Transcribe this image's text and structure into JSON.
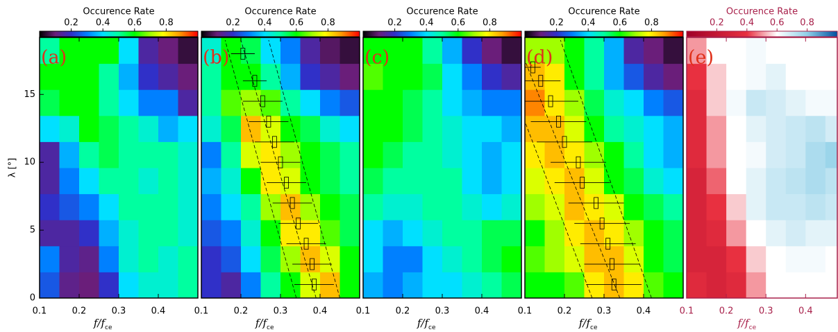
{
  "chart_data": [
    {
      "type": "heatmap",
      "panel_label": "(a)",
      "colormap": "rainbow",
      "axis_color": "#000000",
      "colorbar_title": "Occurence Rate",
      "colorbar_lim": [
        0,
        1
      ],
      "colorbar_ticks": [
        0.2,
        0.4,
        0.6,
        0.8
      ],
      "xlabel": "f/f",
      "xlabel_sub": "ce",
      "ylabel": "λ [°]",
      "xlim": [
        0.1,
        0.5
      ],
      "xticks": [
        0.1,
        0.2,
        0.3,
        0.4
      ],
      "ylim": [
        0,
        19.2
      ],
      "yticks": [
        0,
        5,
        10,
        15
      ],
      "xbins": [
        0.1,
        0.15,
        0.2,
        0.25,
        0.3,
        0.35,
        0.4,
        0.45,
        0.5
      ],
      "ybins": [
        0,
        1.92,
        3.84,
        5.76,
        7.68,
        9.6,
        11.52,
        13.44,
        15.36,
        17.28,
        19.2
      ],
      "z": [
        [
          0.25,
          0.12,
          0.1,
          0.2,
          0.4,
          0.45,
          0.45,
          0.5
        ],
        [
          0.3,
          0.15,
          0.12,
          0.3,
          0.45,
          0.5,
          0.45,
          0.5
        ],
        [
          0.15,
          0.15,
          0.2,
          0.35,
          0.45,
          0.5,
          0.5,
          0.45
        ],
        [
          0.2,
          0.25,
          0.3,
          0.4,
          0.5,
          0.5,
          0.5,
          0.45
        ],
        [
          0.15,
          0.3,
          0.4,
          0.5,
          0.5,
          0.45,
          0.5,
          0.45
        ],
        [
          0.15,
          0.35,
          0.5,
          0.55,
          0.5,
          0.5,
          0.5,
          0.45
        ],
        [
          0.4,
          0.45,
          0.6,
          0.55,
          0.5,
          0.45,
          0.35,
          0.4
        ],
        [
          0.55,
          0.6,
          0.6,
          0.5,
          0.4,
          0.3,
          0.3,
          0.15
        ],
        [
          0.6,
          0.6,
          0.6,
          0.5,
          0.35,
          0.2,
          0.15,
          0.1
        ],
        [
          0.5,
          0.6,
          0.6,
          0.6,
          0.4,
          0.15,
          0.1,
          0.05
        ]
      ]
    },
    {
      "type": "heatmap",
      "panel_label": "(b)",
      "colormap": "rainbow",
      "axis_color": "#000000",
      "colorbar_title": "Occurence Rate",
      "colorbar_lim": [
        0,
        1
      ],
      "colorbar_ticks": [
        0.2,
        0.4,
        0.6,
        0.8
      ],
      "xlabel": "f/f",
      "xlabel_sub": "ce",
      "xlim": [
        0.1,
        0.5
      ],
      "xticks": [
        0.1,
        0.2,
        0.3,
        0.4
      ],
      "ylim": [
        0,
        19.2
      ],
      "xbins": [
        0.1,
        0.15,
        0.2,
        0.25,
        0.3,
        0.35,
        0.4,
        0.45,
        0.5
      ],
      "ybins": [
        0,
        1.92,
        3.84,
        5.76,
        7.68,
        9.6,
        11.52,
        13.44,
        15.36,
        17.28,
        19.2
      ],
      "z": [
        [
          0.2,
          0.15,
          0.3,
          0.5,
          0.6,
          0.75,
          0.85,
          0.6
        ],
        [
          0.2,
          0.25,
          0.4,
          0.55,
          0.7,
          0.85,
          0.75,
          0.6
        ],
        [
          0.25,
          0.3,
          0.45,
          0.6,
          0.8,
          0.8,
          0.65,
          0.55
        ],
        [
          0.3,
          0.4,
          0.5,
          0.7,
          0.85,
          0.7,
          0.6,
          0.55
        ],
        [
          0.35,
          0.45,
          0.6,
          0.8,
          0.75,
          0.6,
          0.55,
          0.5
        ],
        [
          0.3,
          0.5,
          0.75,
          0.8,
          0.7,
          0.6,
          0.55,
          0.5
        ],
        [
          0.45,
          0.55,
          0.85,
          0.75,
          0.6,
          0.55,
          0.45,
          0.4
        ],
        [
          0.5,
          0.65,
          0.7,
          0.65,
          0.5,
          0.4,
          0.3,
          0.25
        ],
        [
          0.5,
          0.6,
          0.6,
          0.5,
          0.35,
          0.2,
          0.15,
          0.1
        ],
        [
          0.45,
          0.6,
          0.55,
          0.4,
          0.3,
          0.15,
          0.08,
          0.05
        ]
      ],
      "ridge": {
        "lambda": [
          1,
          2.5,
          4,
          5.5,
          7,
          8.5,
          10,
          11.5,
          13,
          14.5,
          16,
          18
        ],
        "x": [
          0.385,
          0.38,
          0.365,
          0.345,
          0.33,
          0.315,
          0.3,
          0.285,
          0.27,
          0.255,
          0.235,
          0.205
        ],
        "xerr": [
          0.05,
          0.05,
          0.05,
          0.05,
          0.05,
          0.05,
          0.05,
          0.05,
          0.05,
          0.05,
          0.03,
          0.03
        ]
      },
      "fits": [
        {
          "x": [
            0.39,
            0.2
          ],
          "y": [
            0,
            19
          ]
        },
        {
          "x": [
            0.34,
            0.16
          ],
          "y": [
            0,
            19
          ]
        },
        {
          "x": [
            0.45,
            0.27
          ],
          "y": [
            0,
            19
          ]
        }
      ]
    },
    {
      "type": "heatmap",
      "panel_label": "(c)",
      "colormap": "rainbow",
      "axis_color": "#000000",
      "colorbar_title": "Occurence Rate",
      "colorbar_lim": [
        0,
        1
      ],
      "colorbar_ticks": [
        0.2,
        0.4,
        0.6,
        0.8
      ],
      "xlabel": "f/f",
      "xlabel_sub": "ce",
      "xlim": [
        0.1,
        0.5
      ],
      "xticks": [
        0.1,
        0.2,
        0.3,
        0.4
      ],
      "ylim": [
        0,
        19.2
      ],
      "xbins": [
        0.1,
        0.15,
        0.2,
        0.25,
        0.3,
        0.35,
        0.4,
        0.45,
        0.5
      ],
      "ybins": [
        0,
        1.92,
        3.84,
        5.76,
        7.68,
        9.6,
        11.52,
        13.44,
        15.36,
        17.28,
        19.2
      ],
      "z": [
        [
          0.35,
          0.3,
          0.35,
          0.4,
          0.4,
          0.45,
          0.5,
          0.55
        ],
        [
          0.4,
          0.3,
          0.3,
          0.4,
          0.45,
          0.5,
          0.55,
          0.6
        ],
        [
          0.4,
          0.35,
          0.4,
          0.45,
          0.5,
          0.5,
          0.55,
          0.55
        ],
        [
          0.5,
          0.45,
          0.45,
          0.5,
          0.5,
          0.45,
          0.4,
          0.45
        ],
        [
          0.55,
          0.5,
          0.5,
          0.5,
          0.5,
          0.4,
          0.35,
          0.4
        ],
        [
          0.6,
          0.55,
          0.5,
          0.5,
          0.45,
          0.4,
          0.35,
          0.4
        ],
        [
          0.6,
          0.6,
          0.55,
          0.5,
          0.45,
          0.4,
          0.4,
          0.35
        ],
        [
          0.6,
          0.6,
          0.55,
          0.5,
          0.4,
          0.35,
          0.3,
          0.3
        ],
        [
          0.65,
          0.6,
          0.6,
          0.55,
          0.4,
          0.3,
          0.2,
          0.15
        ],
        [
          0.6,
          0.6,
          0.6,
          0.5,
          0.35,
          0.2,
          0.1,
          0.05
        ]
      ]
    },
    {
      "type": "heatmap",
      "panel_label": "(d)",
      "colormap": "rainbow",
      "axis_color": "#000000",
      "colorbar_title": "Occurence Rate",
      "colorbar_lim": [
        0,
        1
      ],
      "colorbar_ticks": [
        0.2,
        0.4,
        0.6,
        0.8
      ],
      "xlabel": "f/f",
      "xlabel_sub": "ce",
      "xlim": [
        0.1,
        0.5
      ],
      "xticks": [
        0.1,
        0.2,
        0.3,
        0.4
      ],
      "ylim": [
        0,
        19.2
      ],
      "xbins": [
        0.1,
        0.15,
        0.2,
        0.25,
        0.3,
        0.35,
        0.4,
        0.45,
        0.5
      ],
      "ybins": [
        0,
        1.92,
        3.84,
        5.76,
        7.68,
        9.6,
        11.52,
        13.44,
        15.36,
        17.28,
        19.2
      ],
      "z": [
        [
          0.6,
          0.6,
          0.65,
          0.8,
          0.85,
          0.8,
          0.65,
          0.6
        ],
        [
          0.65,
          0.7,
          0.75,
          0.85,
          0.85,
          0.75,
          0.6,
          0.55
        ],
        [
          0.6,
          0.7,
          0.8,
          0.85,
          0.8,
          0.7,
          0.6,
          0.55
        ],
        [
          0.7,
          0.75,
          0.85,
          0.8,
          0.75,
          0.6,
          0.55,
          0.5
        ],
        [
          0.75,
          0.8,
          0.85,
          0.75,
          0.6,
          0.55,
          0.45,
          0.4
        ],
        [
          0.8,
          0.85,
          0.8,
          0.7,
          0.6,
          0.5,
          0.4,
          0.35
        ],
        [
          0.85,
          0.85,
          0.75,
          0.6,
          0.5,
          0.45,
          0.4,
          0.35
        ],
        [
          0.9,
          0.8,
          0.7,
          0.55,
          0.45,
          0.4,
          0.3,
          0.25
        ],
        [
          0.85,
          0.8,
          0.6,
          0.5,
          0.35,
          0.25,
          0.15,
          0.1
        ],
        [
          0.7,
          0.7,
          0.6,
          0.5,
          0.35,
          0.15,
          0.1,
          0.05
        ]
      ],
      "ridge": {
        "lambda": [
          1,
          2.5,
          4,
          5.5,
          7,
          8.5,
          10,
          11.5,
          13,
          14.5,
          16,
          17
        ],
        "x": [
          0.325,
          0.32,
          0.31,
          0.295,
          0.28,
          0.245,
          0.235,
          0.2,
          0.185,
          0.165,
          0.14,
          0.12
        ],
        "xerr": [
          0.07,
          0.07,
          0.07,
          0.07,
          0.07,
          0.07,
          0.07,
          0.07,
          0.07,
          0.07,
          0.05,
          0.02
        ]
      },
      "fits": [
        {
          "x": [
            0.34,
            0.1
          ],
          "y": [
            0,
            17.5
          ]
        },
        {
          "x": [
            0.27,
            0.1
          ],
          "y": [
            0,
            13
          ]
        },
        {
          "x": [
            0.42,
            0.19
          ],
          "y": [
            0,
            19
          ]
        }
      ]
    },
    {
      "type": "heatmap",
      "panel_label": "(e)",
      "colormap": "redblue",
      "axis_color": "#a8204a",
      "colorbar_title": "Occurence Rate",
      "colorbar_lim": [
        0,
        1
      ],
      "colorbar_ticks": [
        0.2,
        0.4,
        0.6,
        0.8
      ],
      "xlabel": "f/f",
      "xlabel_sub": "ce",
      "xlim": [
        0.1,
        0.48
      ],
      "xticks": [
        0.1,
        0.2,
        0.3,
        0.4
      ],
      "ylim": [
        0,
        19.2
      ],
      "xbins": [
        0.1,
        0.15,
        0.2,
        0.25,
        0.3,
        0.35,
        0.4,
        0.45,
        0.5
      ],
      "ybins": [
        0,
        1.92,
        3.84,
        5.76,
        7.68,
        9.6,
        11.52,
        13.44,
        15.36,
        17.28,
        19.2
      ],
      "z": [
        [
          0.35,
          0.3,
          0.35,
          0.5,
          0.6,
          0.6,
          0.6,
          0.6
        ],
        [
          0.3,
          0.3,
          0.4,
          0.55,
          0.6,
          0.62,
          0.62,
          0.6
        ],
        [
          0.3,
          0.35,
          0.5,
          0.6,
          0.65,
          0.68,
          0.65,
          0.65
        ],
        [
          0.3,
          0.4,
          0.55,
          0.65,
          0.7,
          0.7,
          0.72,
          0.7
        ],
        [
          0.3,
          0.45,
          0.6,
          0.65,
          0.7,
          0.72,
          0.75,
          0.72
        ],
        [
          0.35,
          0.5,
          0.6,
          0.62,
          0.68,
          0.7,
          0.75,
          0.78
        ],
        [
          0.35,
          0.5,
          0.6,
          0.65,
          0.68,
          0.7,
          0.72,
          0.68
        ],
        [
          0.35,
          0.55,
          0.62,
          0.7,
          0.68,
          0.65,
          0.62,
          0.62
        ],
        [
          0.4,
          0.55,
          0.6,
          0.62,
          0.65,
          0.6,
          0.6,
          0.6
        ],
        [
          0.5,
          0.6,
          0.6,
          0.62,
          0.6,
          0.6,
          0.6,
          0.6
        ]
      ]
    }
  ]
}
